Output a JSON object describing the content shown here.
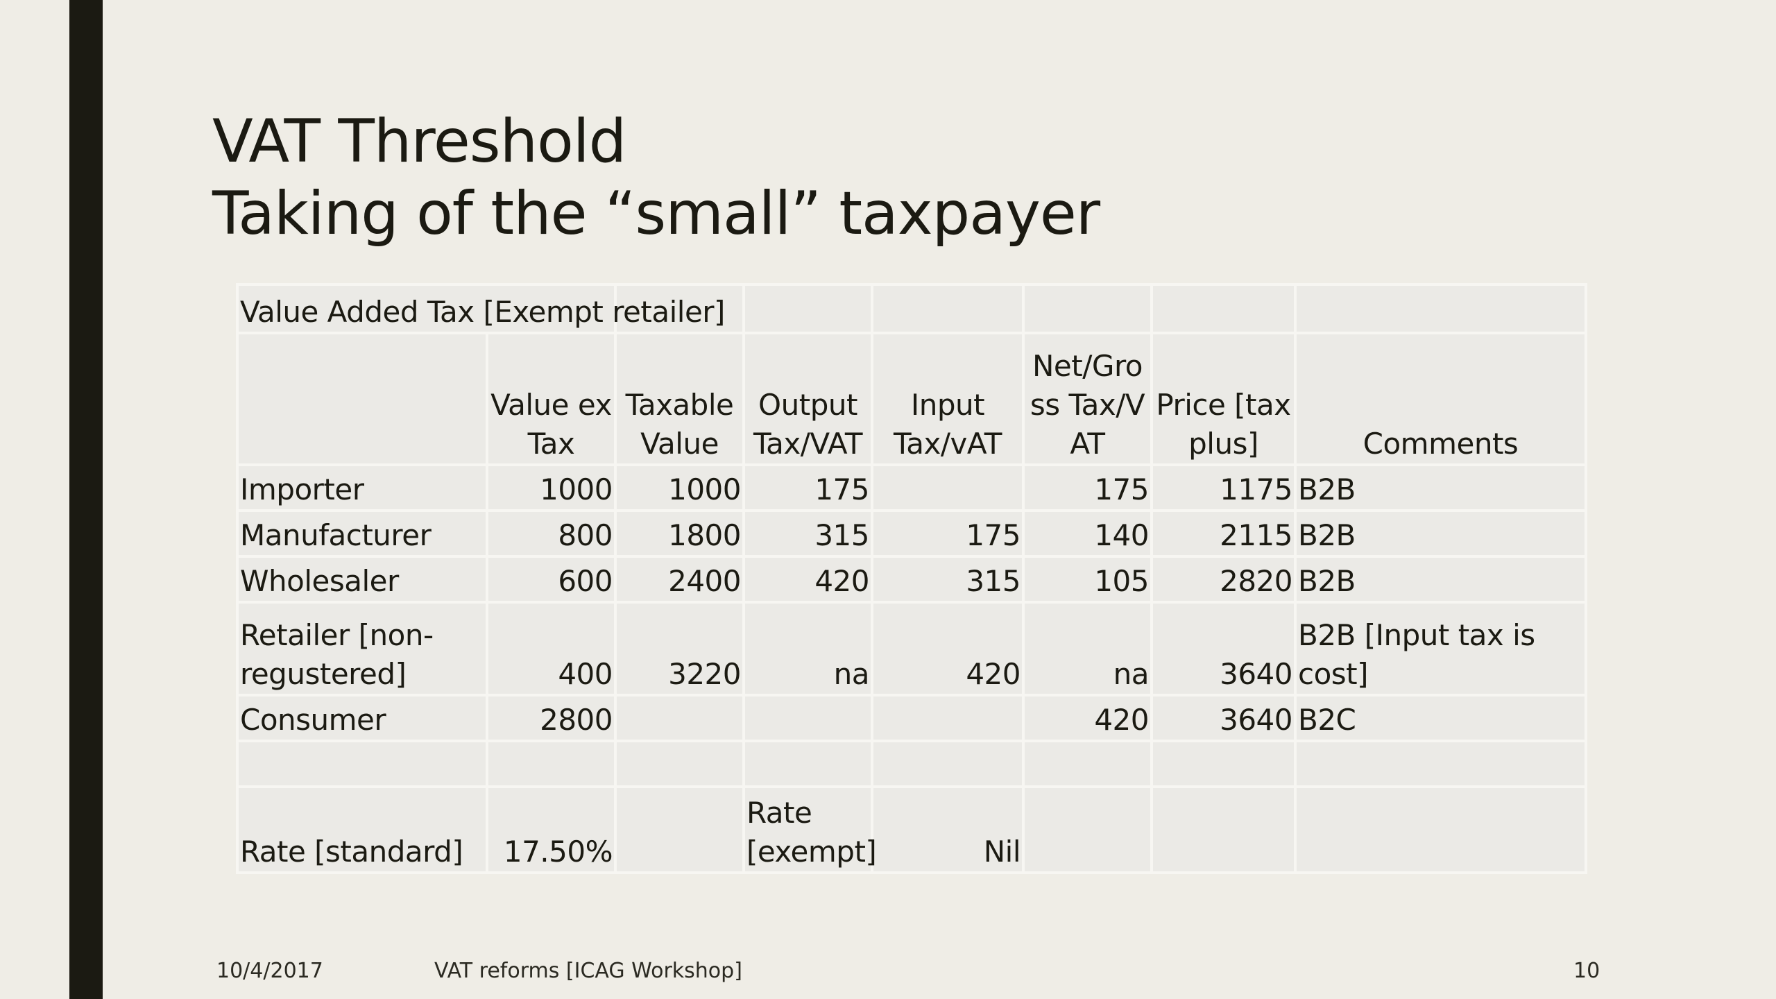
{
  "slide": {
    "title_line1": "VAT Threshold",
    "title_line2": "Taking of the “small” taxpayer"
  },
  "table": {
    "caption": "Value Added Tax [Exempt retailer]",
    "headers": [
      "",
      "Value ex Tax",
      "Taxable Value",
      "Output Tax/VAT",
      "Input Tax/vAT",
      "Net/Gross Tax/VAT",
      "Price [tax plus]",
      "Comments"
    ],
    "rows": [
      [
        "Importer",
        "1000",
        "1000",
        "175",
        "",
        "175",
        "1175",
        "B2B"
      ],
      [
        "Manufacturer",
        "800",
        "1800",
        "315",
        "175",
        "140",
        "2115",
        "B2B"
      ],
      [
        "Wholesaler",
        "600",
        "2400",
        "420",
        "315",
        "105",
        "2820",
        "B2B"
      ],
      [
        "Retailer [non-regustered]",
        "400",
        "3220",
        "na",
        "420",
        "na",
        "3640",
        "B2B [Input tax is cost]"
      ],
      [
        "Consumer",
        "2800",
        "",
        "",
        "",
        "420",
        "3640",
        "B2C"
      ],
      [
        "",
        "",
        "",
        "",
        "",
        "",
        "",
        ""
      ]
    ],
    "rate_row": {
      "standard_label": "Rate [standard]",
      "standard_value": "17.50%",
      "exempt_label": "Rate [exempt]",
      "exempt_value": "Nil"
    }
  },
  "footer": {
    "date": "10/4/2017",
    "text": "VAT reforms [ICAG Workshop]",
    "page": "10"
  },
  "colors": {
    "background": "#efede6",
    "side_bar": "#1b1a12",
    "cell_fill": "#ebeae6",
    "cell_border": "#f7f6f2"
  }
}
